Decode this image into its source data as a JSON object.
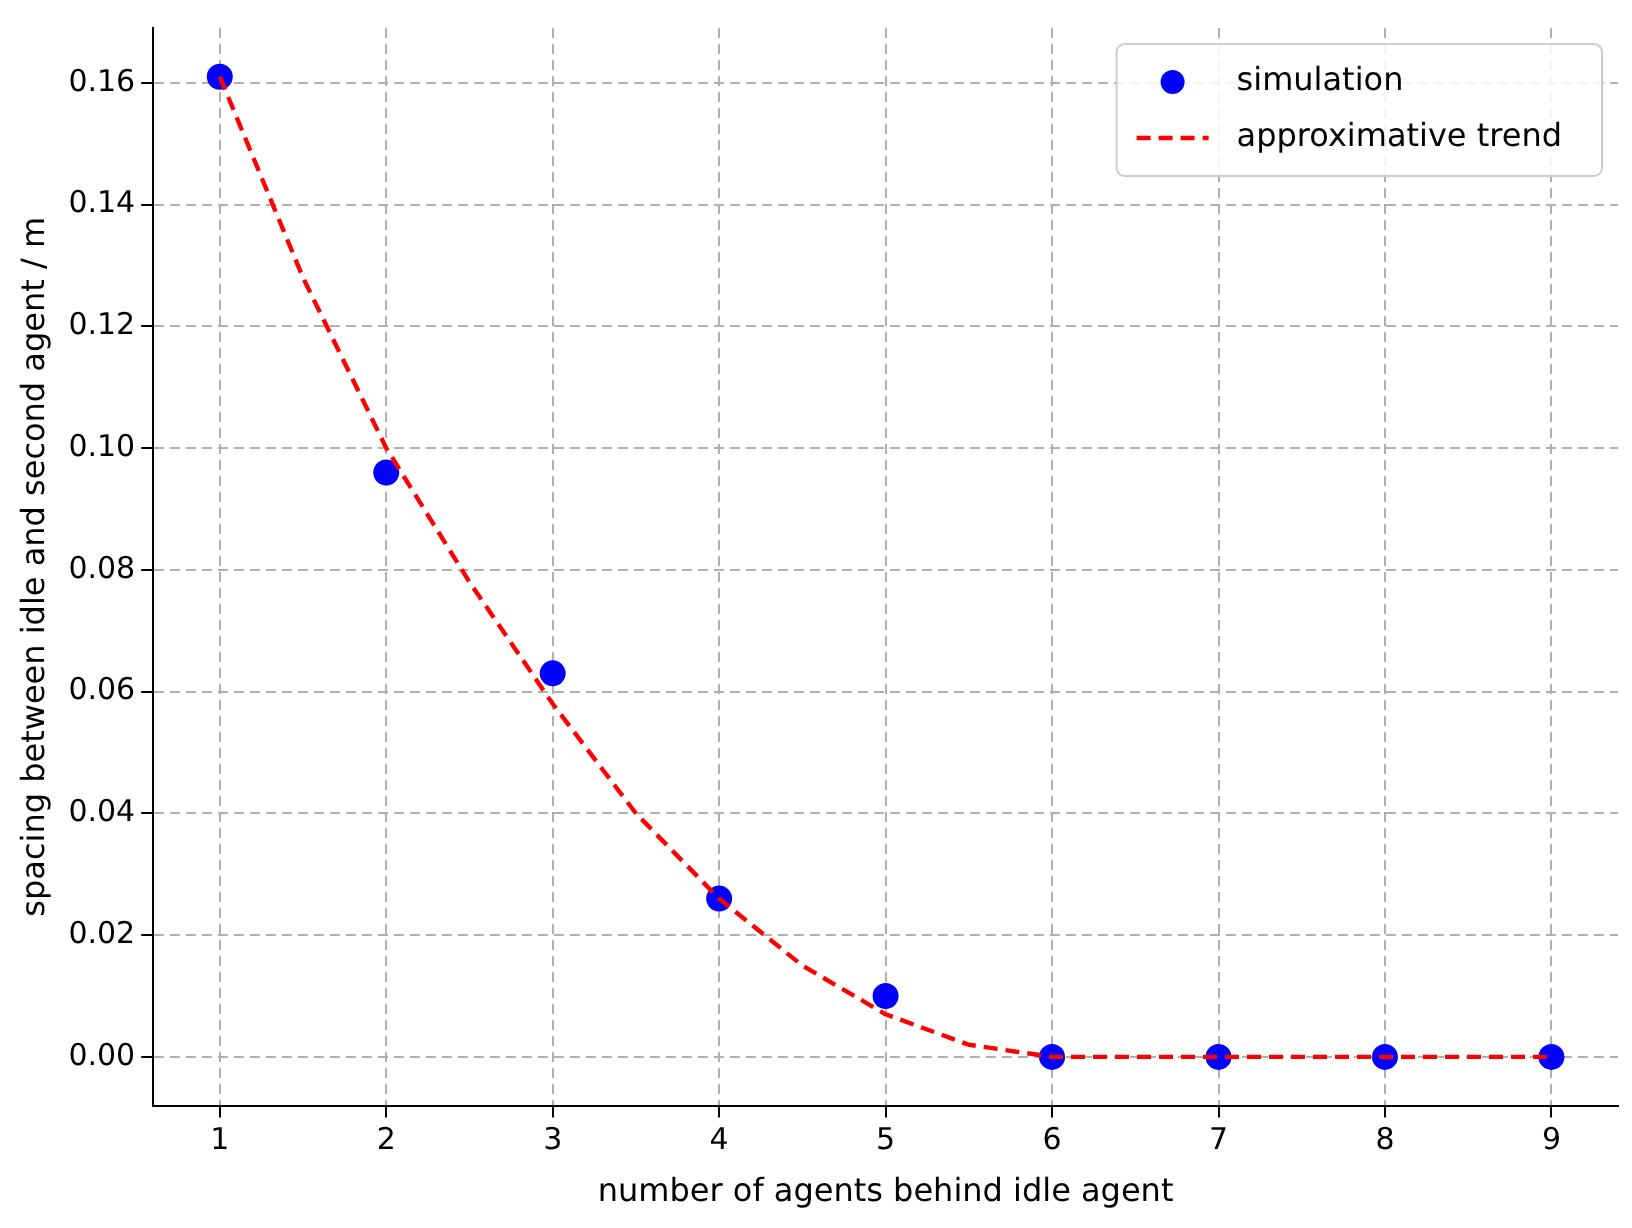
{
  "chart_data": {
    "type": "scatter",
    "xlabel": "number of agents behind idle agent",
    "ylabel": "spacing between idle and second agent / m",
    "xlim": [
      0.6,
      9.4
    ],
    "xticks": [
      1,
      2,
      3,
      4,
      5,
      6,
      7,
      8,
      9
    ],
    "ylim": [
      -0.008,
      0.169
    ],
    "yticks": [
      {
        "value": 0,
        "label": "0.00"
      },
      {
        "value": 0.02,
        "label": "0.02"
      },
      {
        "value": 0.04,
        "label": "0.04"
      },
      {
        "value": 0.06,
        "label": "0.06"
      },
      {
        "value": 0.08,
        "label": "0.08"
      },
      {
        "value": 0.1,
        "label": "0.10"
      },
      {
        "value": 0.12,
        "label": "0.12"
      },
      {
        "value": 0.14,
        "label": "0.14"
      },
      {
        "value": 0.16,
        "label": "0.16"
      }
    ],
    "grid": true,
    "legend": "top right",
    "series": [
      {
        "name": "simulation",
        "type": "scatter",
        "color": "#0000ff",
        "marker": "circle",
        "x": [
          1,
          2,
          3,
          4,
          5,
          6,
          7,
          8,
          9
        ],
        "values": [
          0.161,
          0.096,
          0.063,
          0.026,
          0.01,
          0,
          0,
          0,
          0
        ]
      },
      {
        "name": "approximative trend",
        "type": "line",
        "color": "#ff0000",
        "marker": "none",
        "line_style": "dashed",
        "x": [
          1,
          1.5,
          2,
          2.5,
          3,
          3.5,
          4,
          4.5,
          5,
          5.5,
          6,
          7,
          8,
          9
        ],
        "values": [
          0.161,
          0.128,
          0.1,
          0.078,
          0.058,
          0.04,
          0.026,
          0.015,
          0.007,
          0.002,
          0,
          0,
          0,
          0
        ]
      }
    ]
  }
}
